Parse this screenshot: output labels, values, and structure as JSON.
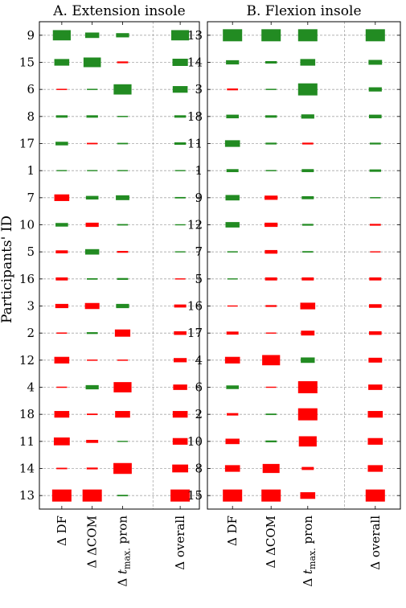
{
  "chart_data": {
    "type": "heatmap",
    "ylabel": "Participants' ID",
    "value_note": "Bar height/width encodes magnitude (0–1, relative); positive = green, negative = red",
    "colors": {
      "positive": "#228B22",
      "negative": "#FF0000"
    },
    "panels": [
      {
        "title": "A. Extension insole",
        "columns": [
          "Δ DF",
          "Δ ΔCOM",
          "Δ tmax. pron",
          "Δ overall"
        ],
        "rows": [
          "9",
          "15",
          "6",
          "8",
          "17",
          "1",
          "7",
          "10",
          "5",
          "16",
          "3",
          "2",
          "12",
          "4",
          "18",
          "11",
          "14",
          "13"
        ],
        "values": [
          [
            0.85,
            0.45,
            0.35,
            0.85
          ],
          [
            0.55,
            0.8,
            -0.15,
            0.6
          ],
          [
            -0.1,
            0.1,
            0.85,
            0.55
          ],
          [
            0.2,
            0.2,
            0.1,
            0.2
          ],
          [
            0.3,
            -0.12,
            0.12,
            0.2
          ],
          [
            0.08,
            0.08,
            0.08,
            0.08
          ],
          [
            -0.55,
            0.3,
            0.4,
            0.12
          ],
          [
            0.3,
            -0.35,
            0.12,
            0.08
          ],
          [
            -0.25,
            0.45,
            -0.15,
            0.08
          ],
          [
            -0.25,
            0.12,
            0.15,
            -0.08
          ],
          [
            -0.35,
            -0.5,
            0.35,
            -0.25
          ],
          [
            -0.1,
            0.15,
            -0.6,
            -0.3
          ],
          [
            -0.55,
            -0.1,
            -0.1,
            -0.35
          ],
          [
            -0.1,
            0.35,
            -0.85,
            -0.45
          ],
          [
            -0.55,
            -0.12,
            -0.55,
            -0.55
          ],
          [
            -0.65,
            -0.25,
            0.08,
            -0.55
          ],
          [
            -0.12,
            -0.15,
            -0.9,
            -0.65
          ],
          [
            -1.0,
            -1.0,
            0.12,
            -1.0
          ]
        ]
      },
      {
        "title": "B. Flexion insole",
        "columns": [
          "Δ DF",
          "Δ ΔCOM",
          "Δ tmax. pron",
          "Δ overall"
        ],
        "rows": [
          "13",
          "14",
          "3",
          "18",
          "11",
          "1",
          "9",
          "12",
          "7",
          "5",
          "16",
          "17",
          "4",
          "6",
          "2",
          "10",
          "8",
          "15"
        ],
        "values": [
          [
            1.0,
            1.0,
            1.0,
            1.0
          ],
          [
            0.35,
            0.2,
            0.55,
            0.4
          ],
          [
            -0.15,
            0.1,
            1.0,
            0.35
          ],
          [
            0.3,
            0.2,
            0.35,
            0.3
          ],
          [
            0.55,
            0.15,
            -0.15,
            0.15
          ],
          [
            0.25,
            0.1,
            0.25,
            0.2
          ],
          [
            0.45,
            -0.35,
            0.25,
            0.1
          ],
          [
            0.45,
            -0.35,
            0.15,
            -0.15
          ],
          [
            0.1,
            -0.3,
            0.12,
            -0.08
          ],
          [
            0.08,
            -0.25,
            -0.25,
            -0.25
          ],
          [
            -0.08,
            -0.15,
            -0.55,
            -0.3
          ],
          [
            -0.25,
            -0.08,
            -0.4,
            -0.3
          ],
          [
            -0.55,
            -0.85,
            0.45,
            -0.4
          ],
          [
            0.3,
            -0.08,
            -1.0,
            -0.45
          ],
          [
            -0.2,
            0.12,
            -1.0,
            -0.55
          ],
          [
            -0.45,
            0.15,
            -0.85,
            -0.55
          ],
          [
            -0.55,
            -0.75,
            -0.25,
            -0.55
          ],
          [
            -1.0,
            -1.0,
            -0.55,
            -1.0
          ]
        ]
      }
    ]
  }
}
